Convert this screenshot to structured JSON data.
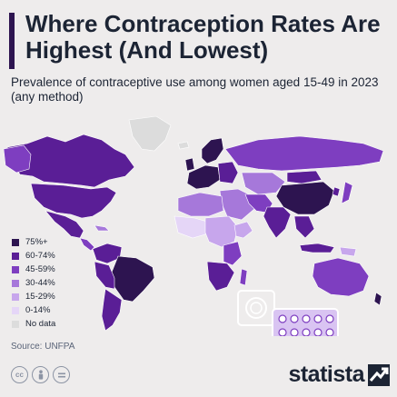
{
  "header": {
    "title": "Where Contraception Rates Are Highest (And Lowest)",
    "subtitle": "Prevalence of contraceptive use among women aged 15-49 in 2023 (any method)"
  },
  "legend": {
    "items": [
      {
        "label": "75%+",
        "color": "#2d1450"
      },
      {
        "label": "60-74%",
        "color": "#5a1e96"
      },
      {
        "label": "45-59%",
        "color": "#7e3ec0"
      },
      {
        "label": "30-44%",
        "color": "#a678da"
      },
      {
        "label": "15-29%",
        "color": "#c7a6ec"
      },
      {
        "label": "0-14%",
        "color": "#e5d6f7"
      },
      {
        "label": "No data",
        "color": "#dcdcdc"
      }
    ]
  },
  "source": "Source: UNFPA",
  "footer": {
    "brand": "statista",
    "license_icons": [
      "cc-icon",
      "by-icon",
      "nd-icon"
    ]
  },
  "colors": {
    "background": "#eeecec",
    "title_text": "#1c2434",
    "accent_bar": "#2d1450"
  }
}
